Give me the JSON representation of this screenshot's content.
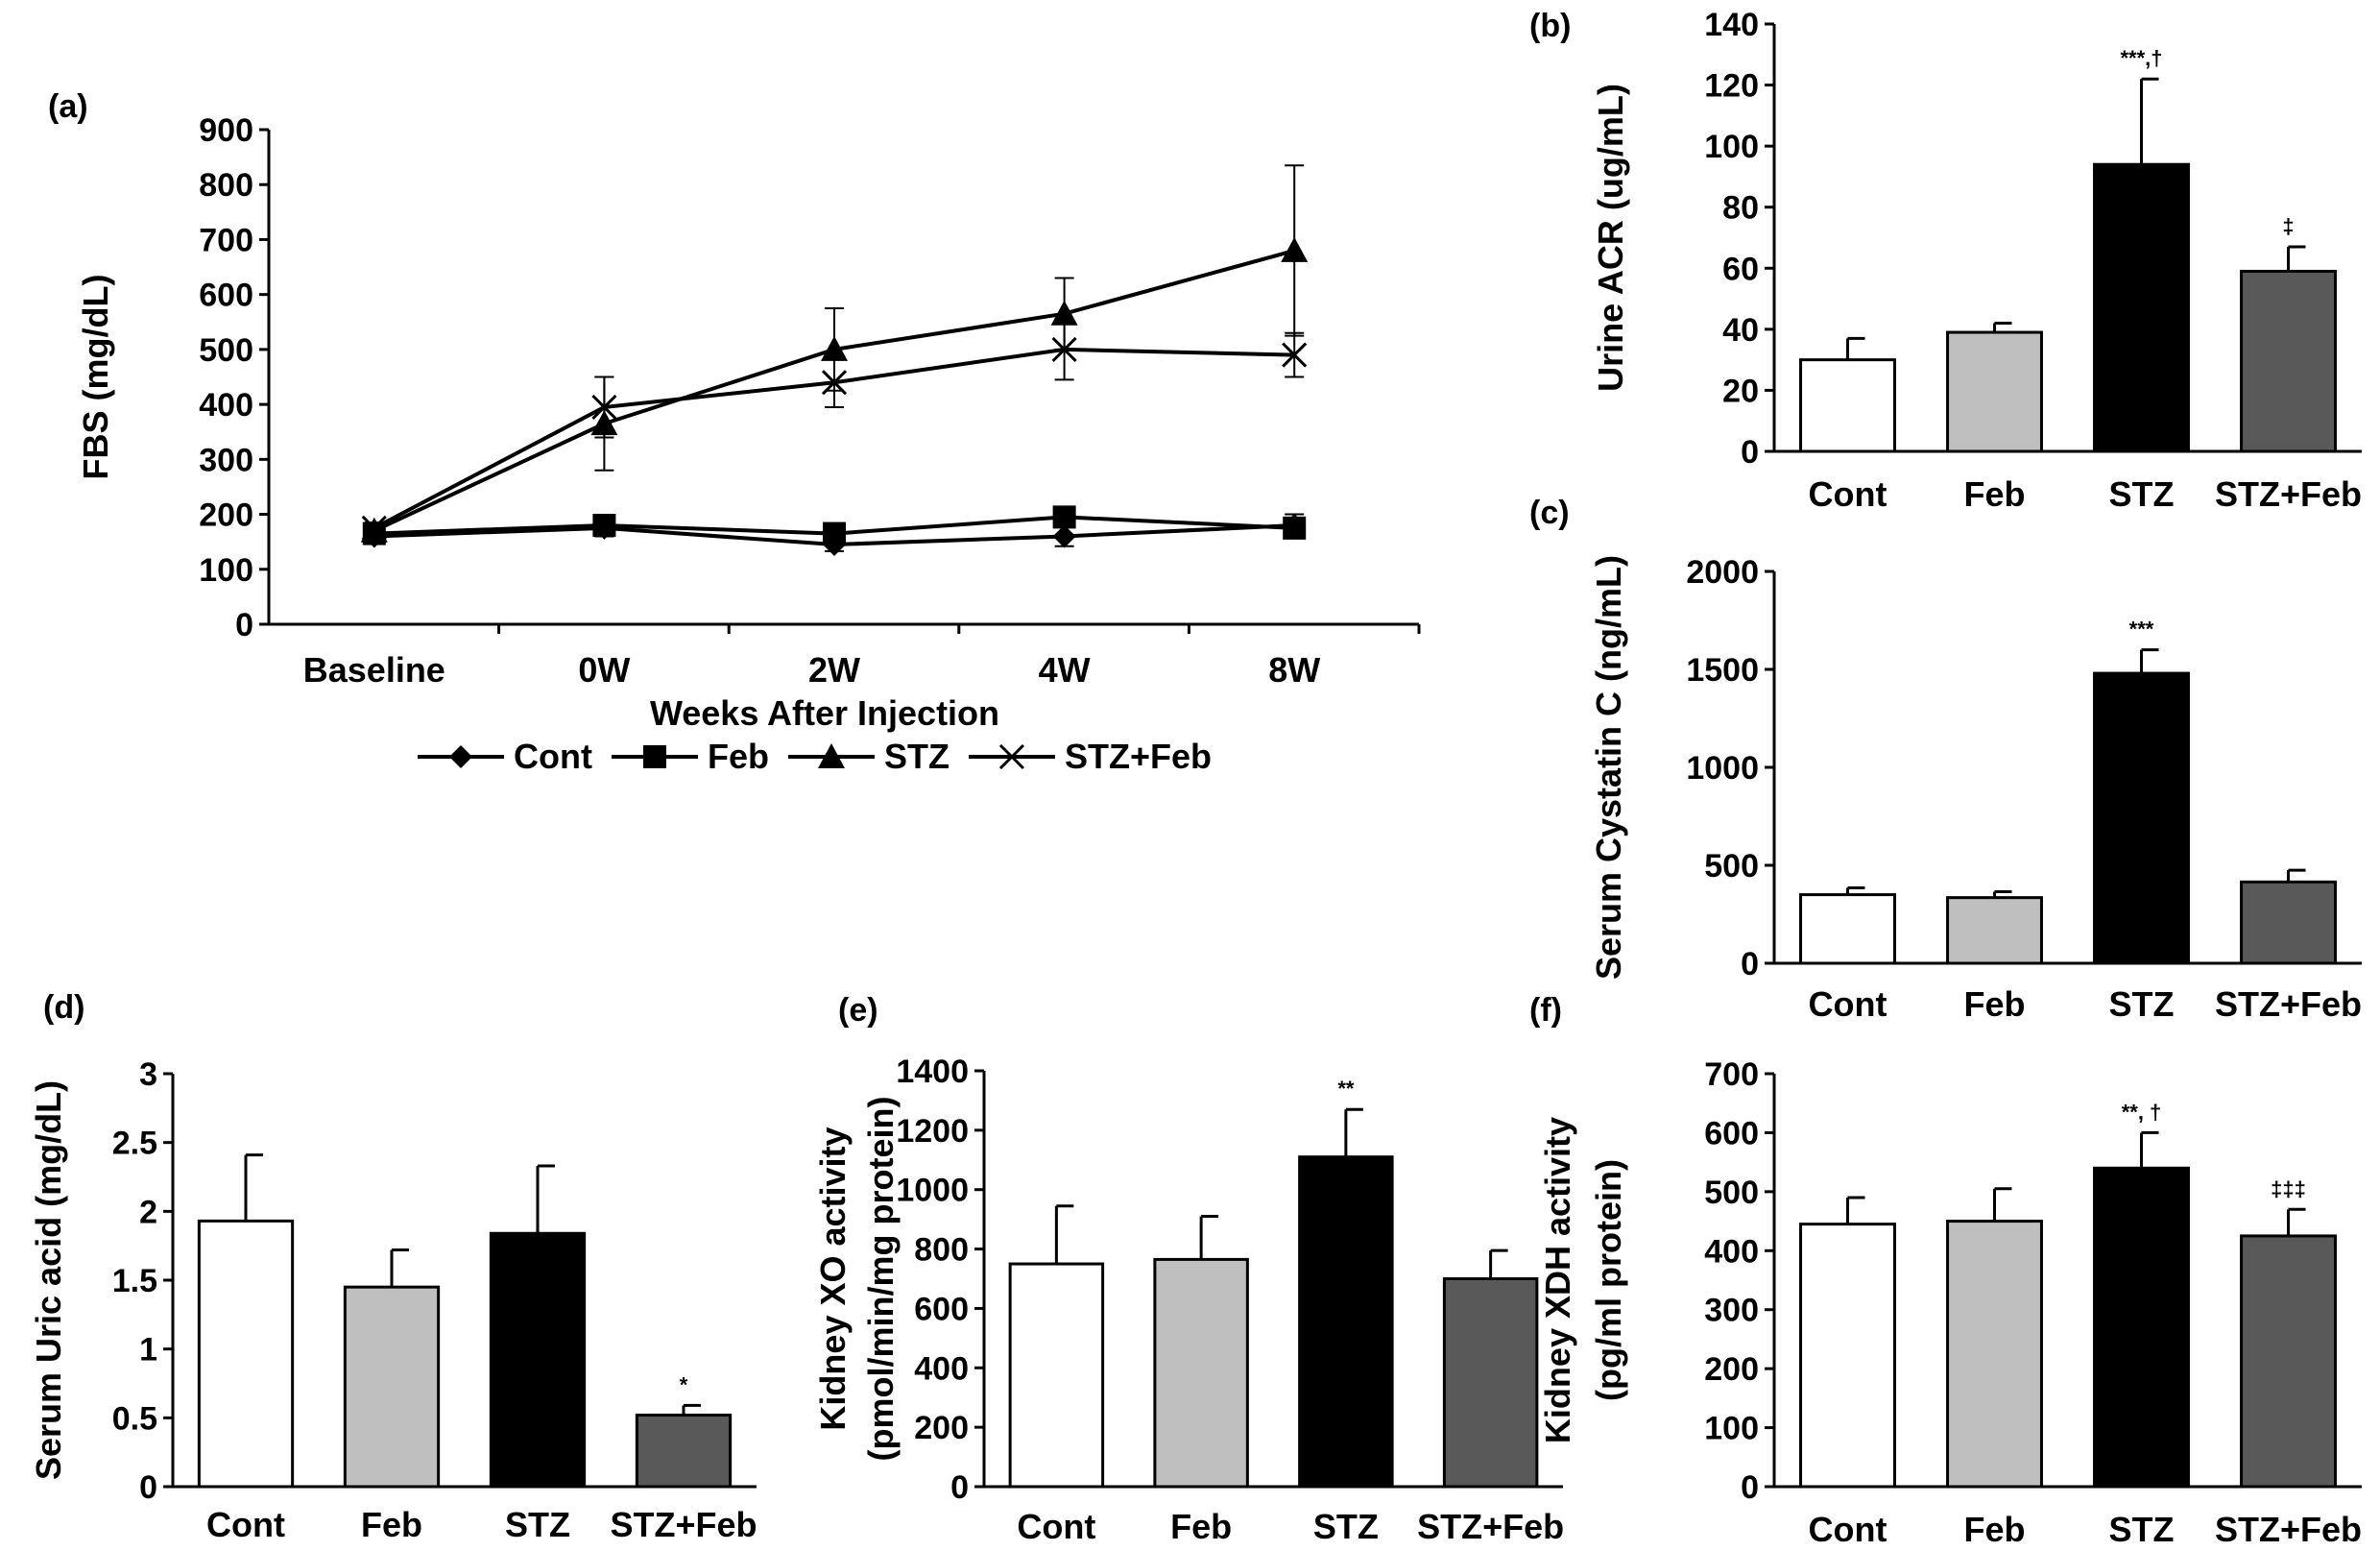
{
  "chart_data": [
    {
      "id": "a",
      "panel_label": "(a)",
      "type": "line",
      "categories": [
        "Baseline",
        "0W",
        "2W",
        "4W",
        "8W"
      ],
      "xlabel": "Weeks After Injection",
      "ylabel": "FBS (mg/dL)",
      "ylim": [
        0,
        900
      ],
      "yticks": [
        0,
        100,
        200,
        300,
        400,
        500,
        600,
        700,
        800,
        900
      ],
      "legend_position": "bottom",
      "series": [
        {
          "name": "Cont",
          "marker": "diamond",
          "values": [
            160,
            175,
            145,
            160,
            180
          ],
          "errors": [
            10,
            15,
            12,
            18,
            20
          ]
        },
        {
          "name": "Feb",
          "marker": "square",
          "values": [
            165,
            180,
            165,
            195,
            175
          ],
          "errors": [
            10,
            12,
            10,
            12,
            18
          ]
        },
        {
          "name": "STZ",
          "marker": "triangle",
          "values": [
            170,
            365,
            500,
            565,
            680
          ],
          "errors": [
            10,
            85,
            75,
            65,
            155
          ]
        },
        {
          "name": "STZ+Feb",
          "marker": "x",
          "values": [
            175,
            395,
            440,
            500,
            490
          ],
          "errors": [
            10,
            55,
            45,
            55,
            40
          ]
        }
      ]
    },
    {
      "id": "b",
      "panel_label": "(b)",
      "type": "bar",
      "categories": [
        "Cont",
        "Feb",
        "STZ",
        "STZ+Feb"
      ],
      "values": [
        30,
        39,
        94,
        59
      ],
      "errors": [
        7,
        3,
        28,
        8
      ],
      "annotations": [
        "",
        "",
        "***,†",
        "‡"
      ],
      "ylabel": "Urine ACR (ug/mL)",
      "ylim": [
        0,
        140
      ],
      "yticks": [
        0,
        20,
        40,
        60,
        80,
        100,
        120,
        140
      ],
      "bar_colors": [
        "#ffffff",
        "#bfbfbf",
        "#000000",
        "#595959"
      ]
    },
    {
      "id": "c",
      "panel_label": "(c)",
      "type": "bar",
      "categories": [
        "Cont",
        "Feb",
        "STZ",
        "STZ+Feb"
      ],
      "values": [
        350,
        335,
        1480,
        415
      ],
      "errors": [
        35,
        30,
        120,
        60
      ],
      "annotations": [
        "",
        "",
        "***",
        ""
      ],
      "ylabel": "Serum Cystatin C (ng/mL)",
      "ylim": [
        0,
        2000
      ],
      "yticks": [
        0,
        500,
        1000,
        1500,
        2000
      ],
      "bar_colors": [
        "#ffffff",
        "#bfbfbf",
        "#000000",
        "#595959"
      ]
    },
    {
      "id": "d",
      "panel_label": "(d)",
      "type": "bar",
      "categories": [
        "Cont",
        "Feb",
        "STZ",
        "STZ+Feb"
      ],
      "values": [
        1.93,
        1.45,
        1.84,
        0.52
      ],
      "errors": [
        0.48,
        0.27,
        0.49,
        0.07
      ],
      "annotations": [
        "",
        "",
        "",
        "*"
      ],
      "ylabel": "Serum Uric acid (mg/dL)",
      "ylim": [
        0,
        3
      ],
      "yticks": [
        0,
        0.5,
        1,
        1.5,
        2,
        2.5,
        3
      ],
      "bar_colors": [
        "#ffffff",
        "#bfbfbf",
        "#000000",
        "#595959"
      ]
    },
    {
      "id": "e",
      "panel_label": "(e)",
      "type": "bar",
      "categories": [
        "Cont",
        "Feb",
        "STZ",
        "STZ+Feb"
      ],
      "values": [
        750,
        765,
        1110,
        700
      ],
      "errors": [
        195,
        145,
        160,
        95
      ],
      "annotations": [
        "",
        "",
        "**",
        ""
      ],
      "ylabel": "Kidney XO activity",
      "ylabel2": "(pmol/min/mg protein)",
      "ylim": [
        0,
        1400
      ],
      "yticks": [
        0,
        200,
        400,
        600,
        800,
        1000,
        1200,
        1400
      ],
      "bar_colors": [
        "#ffffff",
        "#bfbfbf",
        "#000000",
        "#595959"
      ]
    },
    {
      "id": "f",
      "panel_label": "(f)",
      "type": "bar",
      "categories": [
        "Cont",
        "Feb",
        "STZ",
        "STZ+Feb"
      ],
      "values": [
        445,
        450,
        540,
        425
      ],
      "errors": [
        45,
        55,
        60,
        45
      ],
      "annotations": [
        "",
        "",
        "**, †",
        "‡‡‡"
      ],
      "ylabel": "Kidney XDH activity",
      "ylabel2": "(pg/ml protein)",
      "ylim": [
        0,
        700
      ],
      "yticks": [
        0,
        100,
        200,
        300,
        400,
        500,
        600,
        700
      ],
      "bar_colors": [
        "#ffffff",
        "#bfbfbf",
        "#000000",
        "#595959"
      ]
    }
  ]
}
